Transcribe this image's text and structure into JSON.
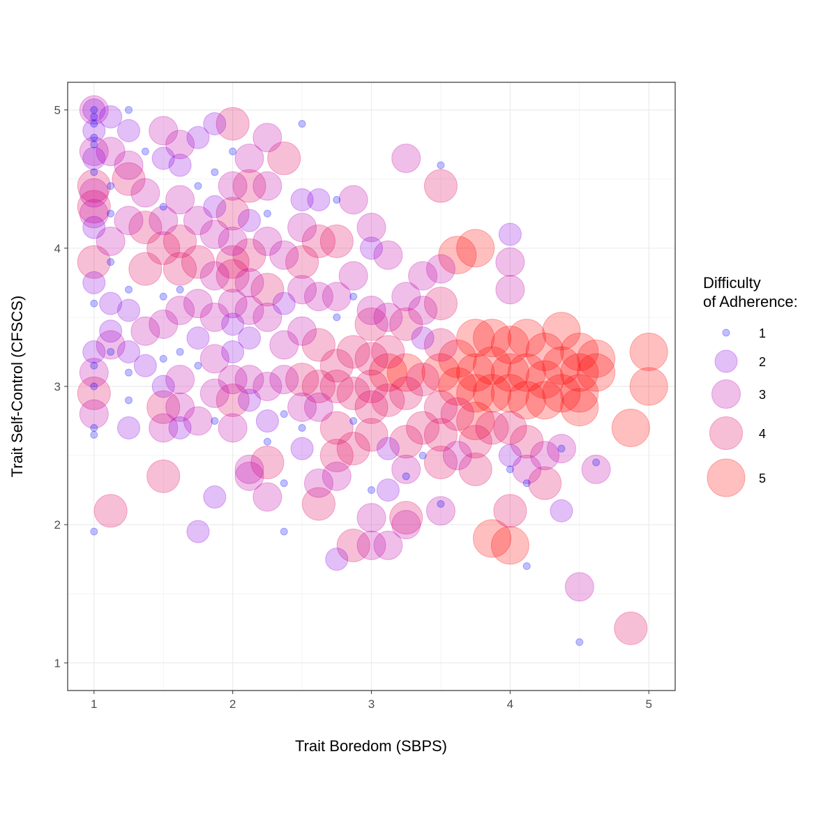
{
  "chart_data": {
    "type": "scatter",
    "title": "",
    "xlabel": "Trait Boredom (SBPS)",
    "ylabel": "Trait Self-Control (CFSCS)",
    "xlim": [
      0.81,
      5.19
    ],
    "ylim": [
      0.8,
      5.2
    ],
    "xticks": [
      "1",
      "2",
      "3",
      "4",
      "5"
    ],
    "yticks": [
      "1",
      "2",
      "3",
      "4",
      "5"
    ],
    "grid": true,
    "legend": {
      "title_line1": "Difficulty",
      "title_line2": "of Adherence:",
      "position": "right",
      "levels": [
        "1",
        "2",
        "3",
        "4",
        "5"
      ]
    },
    "size_color_by": "difficulty",
    "colors": {
      "1": "#0000ff",
      "2": "#8a00e0",
      "3": "#c000a8",
      "4": "#e0005a",
      "5": "#ff0000"
    },
    "point_alpha": 0.25,
    "points": [
      [
        1,
        5,
        3
      ],
      [
        1,
        5,
        2
      ],
      [
        1,
        5,
        1
      ],
      [
        1,
        4.95,
        1
      ],
      [
        1,
        4.9,
        1
      ],
      [
        1,
        4.85,
        2
      ],
      [
        1,
        4.8,
        1
      ],
      [
        1,
        4.75,
        1
      ],
      [
        1,
        4.7,
        3
      ],
      [
        1,
        4.65,
        2
      ],
      [
        1,
        4.55,
        1
      ],
      [
        1,
        4.45,
        4
      ],
      [
        1,
        4.4,
        3
      ],
      [
        1,
        4.3,
        4
      ],
      [
        1,
        4.25,
        3
      ],
      [
        1,
        4.15,
        2
      ],
      [
        1,
        3.9,
        4
      ],
      [
        1,
        3.75,
        2
      ],
      [
        1,
        3.6,
        1
      ],
      [
        1,
        3.25,
        2
      ],
      [
        1,
        3.15,
        1
      ],
      [
        1,
        3.1,
        3
      ],
      [
        1,
        3,
        1
      ],
      [
        1,
        2.95,
        4
      ],
      [
        1,
        2.8,
        3
      ],
      [
        1,
        2.7,
        1
      ],
      [
        1,
        2.65,
        1
      ],
      [
        1,
        1.95,
        1
      ],
      [
        1.12,
        4.95,
        2
      ],
      [
        1.12,
        4.7,
        3
      ],
      [
        1.12,
        4.45,
        1
      ],
      [
        1.12,
        4.25,
        1
      ],
      [
        1.12,
        4.05,
        3
      ],
      [
        1.12,
        3.9,
        1
      ],
      [
        1.12,
        3.6,
        2
      ],
      [
        1.12,
        3.4,
        2
      ],
      [
        1.12,
        3.3,
        3
      ],
      [
        1.12,
        3.25,
        1
      ],
      [
        1.12,
        2.1,
        4
      ],
      [
        1.25,
        5,
        1
      ],
      [
        1.25,
        4.85,
        2
      ],
      [
        1.25,
        4.6,
        3
      ],
      [
        1.25,
        4.5,
        4
      ],
      [
        1.25,
        4.2,
        3
      ],
      [
        1.25,
        3.7,
        1
      ],
      [
        1.25,
        3.55,
        2
      ],
      [
        1.25,
        3.25,
        2
      ],
      [
        1.25,
        3.1,
        1
      ],
      [
        1.25,
        2.9,
        1
      ],
      [
        1.25,
        2.7,
        2
      ],
      [
        1.37,
        4.7,
        1
      ],
      [
        1.37,
        4.4,
        3
      ],
      [
        1.37,
        4.15,
        4
      ],
      [
        1.37,
        3.85,
        4
      ],
      [
        1.37,
        3.4,
        3
      ],
      [
        1.37,
        3.15,
        2
      ],
      [
        1.5,
        4.85,
        3
      ],
      [
        1.5,
        4.65,
        2
      ],
      [
        1.5,
        4.3,
        1
      ],
      [
        1.5,
        4.2,
        3
      ],
      [
        1.5,
        4,
        4
      ],
      [
        1.5,
        3.65,
        1
      ],
      [
        1.5,
        3.45,
        3
      ],
      [
        1.5,
        3.2,
        1
      ],
      [
        1.5,
        3,
        2
      ],
      [
        1.5,
        2.85,
        4
      ],
      [
        1.5,
        2.7,
        3
      ],
      [
        1.5,
        2.35,
        4
      ],
      [
        1.62,
        4.75,
        3
      ],
      [
        1.62,
        4.6,
        2
      ],
      [
        1.62,
        4.35,
        3
      ],
      [
        1.62,
        4.05,
        4
      ],
      [
        1.62,
        3.85,
        4
      ],
      [
        1.62,
        3.7,
        1
      ],
      [
        1.62,
        3.55,
        3
      ],
      [
        1.62,
        3.25,
        1
      ],
      [
        1.62,
        3.05,
        3
      ],
      [
        1.62,
        2.85,
        3
      ],
      [
        1.62,
        2.7,
        2
      ],
      [
        1.75,
        4.8,
        2
      ],
      [
        1.75,
        4.45,
        1
      ],
      [
        1.75,
        4.2,
        3
      ],
      [
        1.75,
        3.9,
        4
      ],
      [
        1.75,
        3.6,
        3
      ],
      [
        1.75,
        3.35,
        2
      ],
      [
        1.75,
        3.15,
        1
      ],
      [
        1.75,
        2.75,
        3
      ],
      [
        1.75,
        1.95,
        2
      ],
      [
        1.87,
        4.9,
        2
      ],
      [
        1.87,
        4.55,
        1
      ],
      [
        1.87,
        4.3,
        2
      ],
      [
        1.87,
        4.1,
        3
      ],
      [
        1.87,
        3.8,
        3
      ],
      [
        1.87,
        3.5,
        3
      ],
      [
        1.87,
        3.2,
        3
      ],
      [
        1.87,
        2.95,
        3
      ],
      [
        1.87,
        2.75,
        1
      ],
      [
        1.87,
        2.2,
        2
      ],
      [
        2,
        4.9,
        4
      ],
      [
        2,
        4.7,
        1
      ],
      [
        2,
        4.45,
        3
      ],
      [
        2,
        4.25,
        4
      ],
      [
        2,
        4.05,
        3
      ],
      [
        2,
        3.9,
        4
      ],
      [
        2,
        3.8,
        4
      ],
      [
        2,
        3.6,
        3
      ],
      [
        2,
        3.45,
        2
      ],
      [
        2,
        3.25,
        2
      ],
      [
        2,
        3.05,
        3
      ],
      [
        2,
        2.9,
        4
      ],
      [
        2,
        2.7,
        3
      ],
      [
        2.12,
        4.65,
        3
      ],
      [
        2.12,
        4.45,
        4
      ],
      [
        2.12,
        4.2,
        2
      ],
      [
        2.12,
        3.95,
        4
      ],
      [
        2.12,
        3.75,
        3
      ],
      [
        2.12,
        3.55,
        3
      ],
      [
        2.12,
        3.35,
        2
      ],
      [
        2.12,
        3.05,
        3
      ],
      [
        2.12,
        2.9,
        2
      ],
      [
        2.12,
        2.4,
        3
      ],
      [
        2.12,
        2.35,
        3
      ],
      [
        2.25,
        4.8,
        3
      ],
      [
        2.25,
        4.45,
        3
      ],
      [
        2.25,
        4.25,
        1
      ],
      [
        2.25,
        4.05,
        3
      ],
      [
        2.25,
        3.7,
        4
      ],
      [
        2.25,
        3.5,
        3
      ],
      [
        2.25,
        3,
        3
      ],
      [
        2.25,
        2.75,
        2
      ],
      [
        2.25,
        2.6,
        1
      ],
      [
        2.25,
        2.45,
        4
      ],
      [
        2.25,
        2.2,
        3
      ],
      [
        2.37,
        4.65,
        4
      ],
      [
        2.37,
        3.95,
        3
      ],
      [
        2.37,
        3.6,
        2
      ],
      [
        2.37,
        3.3,
        3
      ],
      [
        2.37,
        3.05,
        3
      ],
      [
        2.37,
        2.8,
        1
      ],
      [
        2.37,
        2.3,
        1
      ],
      [
        2.37,
        1.95,
        1
      ],
      [
        2.5,
        4.9,
        1
      ],
      [
        2.5,
        4.35,
        2
      ],
      [
        2.5,
        4.15,
        3
      ],
      [
        2.5,
        3.9,
        4
      ],
      [
        2.5,
        3.7,
        3
      ],
      [
        2.5,
        3.4,
        3
      ],
      [
        2.5,
        3.05,
        4
      ],
      [
        2.5,
        2.85,
        3
      ],
      [
        2.5,
        2.7,
        1
      ],
      [
        2.5,
        2.55,
        2
      ],
      [
        2.62,
        4.35,
        2
      ],
      [
        2.62,
        4.05,
        4
      ],
      [
        2.62,
        3.65,
        3
      ],
      [
        2.62,
        3.3,
        4
      ],
      [
        2.62,
        3,
        4
      ],
      [
        2.62,
        2.85,
        3
      ],
      [
        2.62,
        2.3,
        3
      ],
      [
        2.62,
        2.15,
        4
      ],
      [
        2.75,
        4.35,
        1
      ],
      [
        2.75,
        4.05,
        4
      ],
      [
        2.75,
        3.65,
        3
      ],
      [
        2.75,
        3.5,
        1
      ],
      [
        2.75,
        3.15,
        4
      ],
      [
        2.75,
        3,
        4
      ],
      [
        2.75,
        2.7,
        4
      ],
      [
        2.75,
        2.5,
        4
      ],
      [
        2.75,
        2.35,
        3
      ],
      [
        2.75,
        1.75,
        2
      ],
      [
        2.87,
        4.35,
        3
      ],
      [
        2.87,
        3.8,
        3
      ],
      [
        2.87,
        3.65,
        1
      ],
      [
        2.87,
        3.25,
        4
      ],
      [
        2.87,
        2.95,
        4
      ],
      [
        2.87,
        2.75,
        1
      ],
      [
        2.87,
        2.55,
        4
      ],
      [
        2.87,
        1.85,
        4
      ],
      [
        3,
        4.15,
        3
      ],
      [
        3,
        4,
        2
      ],
      [
        3,
        3.55,
        3
      ],
      [
        3,
        3.45,
        4
      ],
      [
        3,
        3.2,
        4
      ],
      [
        3,
        3,
        4
      ],
      [
        3,
        2.85,
        4
      ],
      [
        3,
        2.65,
        4
      ],
      [
        3,
        2.25,
        1
      ],
      [
        3,
        2.05,
        3
      ],
      [
        3,
        1.85,
        3
      ],
      [
        3.12,
        3.95,
        3
      ],
      [
        3.12,
        3.5,
        3
      ],
      [
        3.12,
        3.25,
        4
      ],
      [
        3.12,
        3.1,
        5
      ],
      [
        3.12,
        2.9,
        4
      ],
      [
        3.12,
        2.55,
        2
      ],
      [
        3.12,
        2.25,
        2
      ],
      [
        3.12,
        1.85,
        3
      ],
      [
        3.25,
        4.65,
        3
      ],
      [
        3.25,
        3.65,
        3
      ],
      [
        3.25,
        3.45,
        4
      ],
      [
        3.25,
        3.1,
        5
      ],
      [
        3.25,
        2.95,
        4
      ],
      [
        3.25,
        2.6,
        4
      ],
      [
        3.25,
        2.4,
        3
      ],
      [
        3.25,
        2.35,
        1
      ],
      [
        3.25,
        2.05,
        4
      ],
      [
        3.25,
        2,
        3
      ],
      [
        3.37,
        3.8,
        3
      ],
      [
        3.37,
        3.55,
        3
      ],
      [
        3.37,
        3.35,
        2
      ],
      [
        3.37,
        3.05,
        4
      ],
      [
        3.37,
        2.7,
        4
      ],
      [
        3.37,
        2.5,
        1
      ],
      [
        3.5,
        4.6,
        1
      ],
      [
        3.5,
        4.45,
        4
      ],
      [
        3.5,
        3.85,
        3
      ],
      [
        3.5,
        3.6,
        4
      ],
      [
        3.5,
        3.3,
        4
      ],
      [
        3.5,
        3.1,
        5
      ],
      [
        3.5,
        2.85,
        4
      ],
      [
        3.5,
        2.65,
        4
      ],
      [
        3.5,
        2.45,
        4
      ],
      [
        3.5,
        2.15,
        1
      ],
      [
        3.5,
        2.1,
        3
      ],
      [
        3.62,
        3.95,
        5
      ],
      [
        3.62,
        3.2,
        5
      ],
      [
        3.62,
        3,
        5
      ],
      [
        3.62,
        2.8,
        4
      ],
      [
        3.62,
        2.5,
        3
      ],
      [
        3.75,
        4,
        5
      ],
      [
        3.75,
        3.35,
        5
      ],
      [
        3.75,
        3.1,
        5
      ],
      [
        3.75,
        2.95,
        5
      ],
      [
        3.75,
        2.75,
        5
      ],
      [
        3.75,
        2.6,
        4
      ],
      [
        3.75,
        2.4,
        4
      ],
      [
        3.87,
        3.35,
        5
      ],
      [
        3.87,
        3.15,
        5
      ],
      [
        3.87,
        2.95,
        5
      ],
      [
        3.87,
        2.7,
        4
      ],
      [
        3.87,
        1.9,
        5
      ],
      [
        4,
        4.1,
        2
      ],
      [
        4,
        3.9,
        3
      ],
      [
        4,
        3.7,
        3
      ],
      [
        4,
        3.3,
        5
      ],
      [
        4,
        3.1,
        5
      ],
      [
        4,
        2.95,
        5
      ],
      [
        4,
        2.7,
        4
      ],
      [
        4,
        2.5,
        2
      ],
      [
        4,
        2.4,
        1
      ],
      [
        4,
        2.1,
        4
      ],
      [
        4,
        1.85,
        5
      ],
      [
        4.12,
        3.35,
        5
      ],
      [
        4.12,
        3.1,
        5
      ],
      [
        4.12,
        2.9,
        5
      ],
      [
        4.12,
        2.6,
        4
      ],
      [
        4.12,
        2.4,
        3
      ],
      [
        4.12,
        2.3,
        1
      ],
      [
        4.12,
        1.7,
        1
      ],
      [
        4.25,
        3.25,
        5
      ],
      [
        4.25,
        3.05,
        5
      ],
      [
        4.25,
        2.9,
        5
      ],
      [
        4.25,
        2.5,
        3
      ],
      [
        4.25,
        2.3,
        4
      ],
      [
        4.37,
        3.4,
        5
      ],
      [
        4.37,
        3.15,
        5
      ],
      [
        4.37,
        2.95,
        5
      ],
      [
        4.37,
        2.55,
        3
      ],
      [
        4.37,
        2.55,
        1
      ],
      [
        4.37,
        2.1,
        2
      ],
      [
        4.5,
        3.25,
        5
      ],
      [
        4.5,
        3.1,
        5
      ],
      [
        4.5,
        2.95,
        5
      ],
      [
        4.5,
        2.85,
        5
      ],
      [
        4.5,
        1.55,
        3
      ],
      [
        4.5,
        1.15,
        1
      ],
      [
        4.62,
        3.2,
        5
      ],
      [
        4.62,
        3.1,
        5
      ],
      [
        4.62,
        2.45,
        1
      ],
      [
        4.62,
        2.4,
        3
      ],
      [
        4.87,
        2.7,
        5
      ],
      [
        4.87,
        1.25,
        4
      ],
      [
        5,
        3.25,
        5
      ],
      [
        5,
        3,
        5
      ]
    ]
  }
}
